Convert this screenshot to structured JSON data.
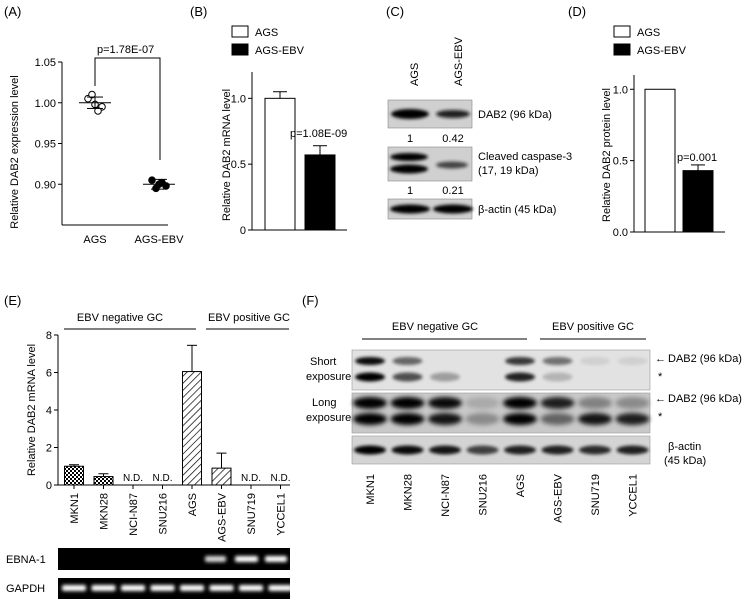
{
  "panels": {
    "A": {
      "label": "(A)",
      "chart_data": {
        "type": "scatter",
        "categories": [
          "AGS",
          "AGS-EBV"
        ],
        "ylabel": "Relative DAB2 expression level",
        "ylim": [
          0.85,
          1.05
        ],
        "yticks": [
          "0.90",
          "0.95",
          "1.00",
          "1.05"
        ],
        "points": [
          [
            1.005,
            0.995,
            1.01,
            0.99,
            0.998
          ],
          [
            0.905,
            0.898,
            0.895,
            0.902,
            0.9
          ]
        ],
        "means": [
          1.0,
          0.9
        ],
        "sd": [
          0.007,
          0.006
        ],
        "pvalue": "p=1.78E-07"
      }
    },
    "B": {
      "label": "(B)",
      "chart_data": {
        "type": "bar",
        "ylabel": "Relative DAB2 mRNA level",
        "ylim": [
          0,
          1.2
        ],
        "yticks": [
          "0",
          "0.5",
          "1.0"
        ],
        "series": [
          {
            "name": "AGS",
            "value": 1.0,
            "err": 0.05
          },
          {
            "name": "AGS-EBV",
            "value": 0.57,
            "err": 0.07
          }
        ],
        "pvalue": "p=1.08E-09"
      }
    },
    "C": {
      "label": "(C)",
      "lanes": [
        "AGS",
        "AGS-EBV"
      ],
      "bands": [
        {
          "label": "DAB2 (96 kDa)",
          "values": [
            "1",
            "0.42"
          ]
        },
        {
          "label": "Cleaved caspase-3",
          "label2": "(17, 19 kDa)",
          "values": [
            "1",
            "0.21"
          ]
        },
        {
          "label": "β-actin (45 kDa)"
        }
      ]
    },
    "D": {
      "label": "(D)",
      "chart_data": {
        "type": "bar",
        "ylabel": "Relative DAB2 protein level",
        "ylim": [
          0,
          1.1
        ],
        "yticks": [
          "0.0",
          "0.5",
          "1.0"
        ],
        "series": [
          {
            "name": "AGS",
            "value": 1.0,
            "err": 0
          },
          {
            "name": "AGS-EBV",
            "value": 0.43,
            "err": 0.04
          }
        ],
        "pvalue": "p=0.001"
      }
    },
    "E": {
      "label": "(E)",
      "group_neg": "EBV negative GC",
      "group_pos": "EBV positive GC",
      "chart_data": {
        "type": "bar",
        "ylabel": "Relative DAB2 mRNA level",
        "ylim": [
          0,
          8
        ],
        "yticks": [
          "0",
          "2",
          "4",
          "6",
          "8"
        ],
        "categories": [
          "MKN1",
          "MKN28",
          "NCI-N87",
          "SNU216",
          "AGS",
          "AGS-EBV",
          "SNU719",
          "YCCEL1"
        ],
        "values": [
          1.0,
          0.45,
          0,
          0,
          6.05,
          0.9,
          0,
          0
        ],
        "errors": [
          0.08,
          0.15,
          0,
          0,
          1.4,
          0.8,
          0,
          0
        ],
        "nd": [
          "",
          "",
          "N.D.",
          "N.D.",
          "",
          "",
          "N.D.",
          "N.D."
        ]
      },
      "gels": [
        {
          "label": "EBNA-1"
        },
        {
          "label": "GAPDH"
        }
      ]
    },
    "F": {
      "label": "(F)",
      "group_neg": "EBV negative GC",
      "group_pos": "EBV positive GC",
      "lanes": [
        "MKN1",
        "MKN28",
        "NCI-N87",
        "SNU216",
        "AGS",
        "AGS-EBV",
        "SNU719",
        "YCCEL1"
      ],
      "row_short_1": "Short",
      "row_short_2": "exposure",
      "row_long_1": "Long",
      "row_long_2": "exposure",
      "dab2_label": "DAB2 (96 kDa)",
      "arrow": "←",
      "star": "*",
      "actin_1": "β-actin",
      "actin_2": "(45 kDa)"
    }
  }
}
